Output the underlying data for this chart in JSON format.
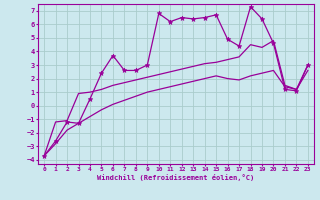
{
  "title": "",
  "xlabel": "Windchill (Refroidissement éolien,°C)",
  "ylabel": "",
  "bg_color": "#cce8ee",
  "line_color": "#990099",
  "grid_color": "#aacccc",
  "xlim": [
    -0.5,
    23.5
  ],
  "ylim": [
    -4.3,
    7.5
  ],
  "xticks": [
    0,
    1,
    2,
    3,
    4,
    5,
    6,
    7,
    8,
    9,
    10,
    11,
    12,
    13,
    14,
    15,
    16,
    17,
    18,
    19,
    20,
    21,
    22,
    23
  ],
  "yticks": [
    -4,
    -3,
    -2,
    -1,
    0,
    1,
    2,
    3,
    4,
    5,
    6,
    7
  ],
  "noisy_x": [
    0,
    1,
    2,
    3,
    4,
    5,
    6,
    7,
    8,
    9,
    10,
    11,
    12,
    13,
    14,
    15,
    16,
    17,
    18,
    19,
    20,
    21,
    22,
    23
  ],
  "noisy_y": [
    -3.7,
    -2.6,
    -1.2,
    -1.3,
    0.5,
    2.4,
    3.7,
    2.6,
    2.6,
    3.0,
    6.8,
    6.2,
    6.5,
    6.4,
    6.5,
    6.7,
    4.9,
    4.4,
    7.3,
    6.4,
    4.6,
    1.2,
    1.1,
    3.0
  ],
  "upper_x": [
    0,
    1,
    2,
    3,
    4,
    5,
    6,
    7,
    8,
    9,
    10,
    11,
    12,
    13,
    14,
    15,
    16,
    17,
    18,
    19,
    20,
    21,
    22,
    23
  ],
  "upper_y": [
    -3.7,
    -1.2,
    -1.1,
    0.9,
    1.0,
    1.2,
    1.5,
    1.7,
    1.9,
    2.1,
    2.3,
    2.5,
    2.7,
    2.9,
    3.1,
    3.2,
    3.4,
    3.6,
    4.5,
    4.3,
    4.8,
    1.5,
    1.2,
    3.0
  ],
  "lower_x": [
    0,
    1,
    2,
    3,
    4,
    5,
    6,
    7,
    8,
    9,
    10,
    11,
    12,
    13,
    14,
    15,
    16,
    17,
    18,
    19,
    20,
    21,
    22,
    23
  ],
  "lower_y": [
    -3.7,
    -2.8,
    -1.8,
    -1.3,
    -0.8,
    -0.3,
    0.1,
    0.4,
    0.7,
    1.0,
    1.2,
    1.4,
    1.6,
    1.8,
    2.0,
    2.2,
    2.0,
    1.9,
    2.2,
    2.4,
    2.6,
    1.4,
    1.2,
    2.6
  ]
}
